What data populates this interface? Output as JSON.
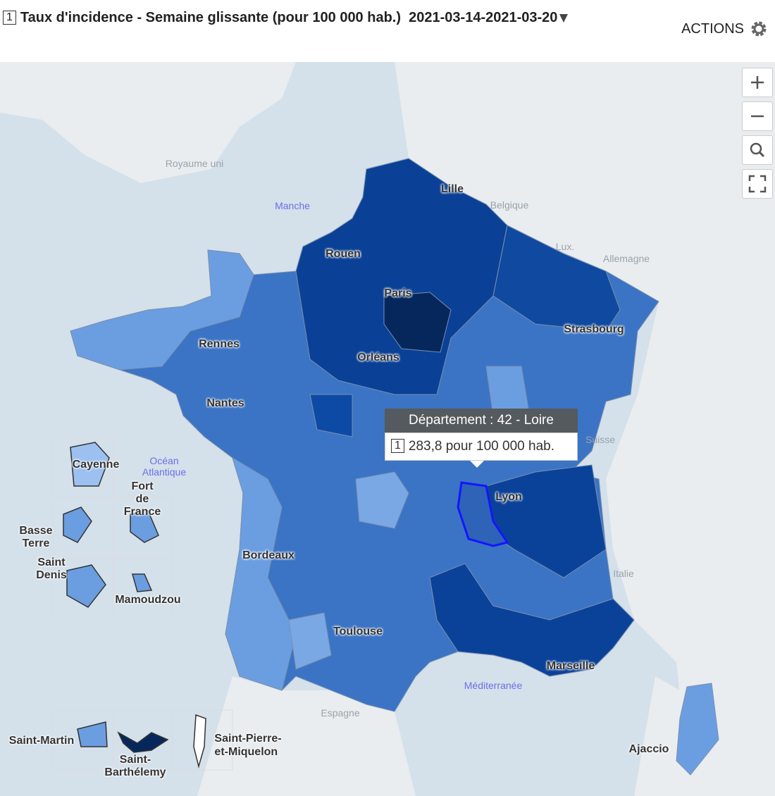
{
  "header": {
    "badge": "1",
    "title": "Taux d'incidence - Semaine glissante (pour 100 000 hab.)",
    "period": "2021-03-14-2021-03-20",
    "actions": "ACTIONS"
  },
  "map": {
    "places": {
      "royaume_uni": "Royaume uni",
      "belgique": "Belgique",
      "lux": "Lux.",
      "allemagne": "Allemagne",
      "suisse": "Suisse",
      "italie": "Italie",
      "espagne": "Espagne"
    },
    "seas": {
      "manche": "Manche",
      "ocean": [
        "Océan",
        "Atlantique"
      ],
      "mediterranee": "Méditerranée"
    },
    "cities": {
      "lille": "Lille",
      "rouen": "Rouen",
      "paris": "Paris",
      "strasbourg": "Strasbourg",
      "rennes": "Rennes",
      "orleans": "Orléans",
      "nantes": "Nantes",
      "lyon": "Lyon",
      "bordeaux": "Bordeaux",
      "toulouse": "Toulouse",
      "marseille": "Marseille",
      "ajaccio": "Ajaccio"
    },
    "overseas": {
      "cayenne": "Cayenne",
      "fort_de_france": [
        "Fort",
        "de",
        "France"
      ],
      "basse_terre": [
        "Basse",
        "Terre"
      ],
      "saint_denis": [
        "Saint",
        "Denis"
      ],
      "mamoudzou": "Mamoudzou",
      "saint_martin": "Saint-Martin",
      "saint_barthelemy": [
        "Saint-",
        "Barthélemy"
      ],
      "saint_pierre": [
        "Saint-Pierre-",
        "et-Miquelon"
      ]
    }
  },
  "tooltip": {
    "title": "Département : 42 - Loire",
    "badge": "1",
    "value": "283,8 pour 100 000 hab."
  }
}
